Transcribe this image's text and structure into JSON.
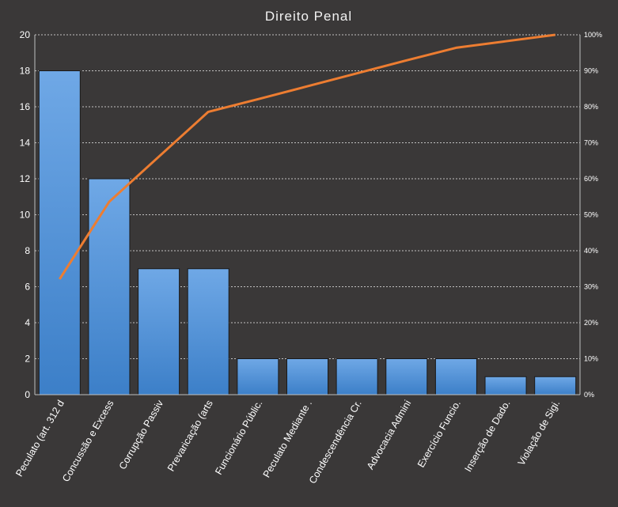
{
  "chart_data": {
    "type": "bar",
    "title": "Direito Penal",
    "categories": [
      "Peculato (art. 312 d",
      "Concussão e Excess",
      "Corrupção Passiv",
      "Prevaricação (arts",
      "Funcionário Públic.",
      "Peculato Mediante .",
      "Condescendência Cr.",
      "Advocacia Admini",
      "Exercício Funcio.",
      "Inserção de Dado.",
      "Violação de Sigi."
    ],
    "series": [
      {
        "type": "bar",
        "values": [
          18,
          12,
          7,
          7,
          2,
          2,
          2,
          2,
          2,
          1,
          1
        ]
      },
      {
        "type": "line",
        "axis": "right",
        "values": [
          32.1,
          53.6,
          66.1,
          78.6,
          82.1,
          85.7,
          89.3,
          92.9,
          96.4,
          98.2,
          100
        ]
      }
    ],
    "ylim": [
      0,
      20
    ],
    "yticks": [
      "0",
      "2",
      "4",
      "6",
      "8",
      "10",
      "12",
      "14",
      "16",
      "18",
      "20"
    ],
    "y2lim": [
      0,
      100
    ],
    "y2ticks": [
      "0%",
      "10%",
      "20%",
      "30%",
      "40%",
      "50%",
      "60%",
      "70%",
      "80%",
      "90%",
      "100%"
    ],
    "grid": true,
    "legend": "none",
    "colors": {
      "bar_top": "#6fa8e6",
      "bar_bottom": "#3c7fc8",
      "line": "#ed7d31",
      "background": "#3a3838"
    }
  }
}
